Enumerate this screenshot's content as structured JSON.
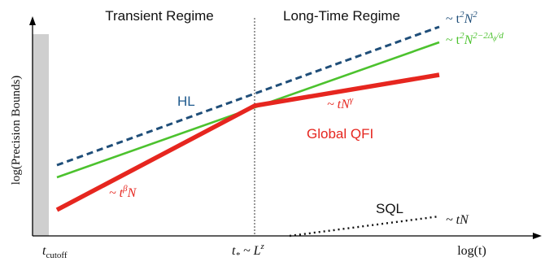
{
  "regions": {
    "left": "Transient Regime",
    "right": "Long-Time Regime"
  },
  "axes": {
    "ylabel": "log(Precision Bounds)",
    "xlabel": "log(t)"
  },
  "ticks": {
    "cutoff": {
      "base": "t",
      "sub": "cutoff"
    },
    "star": {
      "base": "t",
      "sub": "*",
      "mid": " ~ L",
      "sup": "z"
    }
  },
  "curves": {
    "hl": {
      "label": "HL",
      "color": "#1f4e79"
    },
    "green": {
      "color": "#4cc22e"
    },
    "qfi": {
      "label": "Global QFI",
      "color": "#e6261f"
    },
    "sql": {
      "label": "SQL",
      "color": "#000000"
    }
  },
  "scalings": {
    "hl": {
      "pre": "~ t",
      "sup1": "2",
      "mid": "N",
      "sup2": "2"
    },
    "green": {
      "pre": "~ t",
      "sup1": "2",
      "mid": "N",
      "sup2": "2−2Δ",
      "sub": "ϕ",
      "tail": "/d"
    },
    "qfi_long": {
      "pre": "~ tN",
      "sup": "γ"
    },
    "qfi_short": {
      "pre": "~ t",
      "sup": "β",
      "mid": "N"
    },
    "sql": {
      "text": "~ tN"
    }
  }
}
